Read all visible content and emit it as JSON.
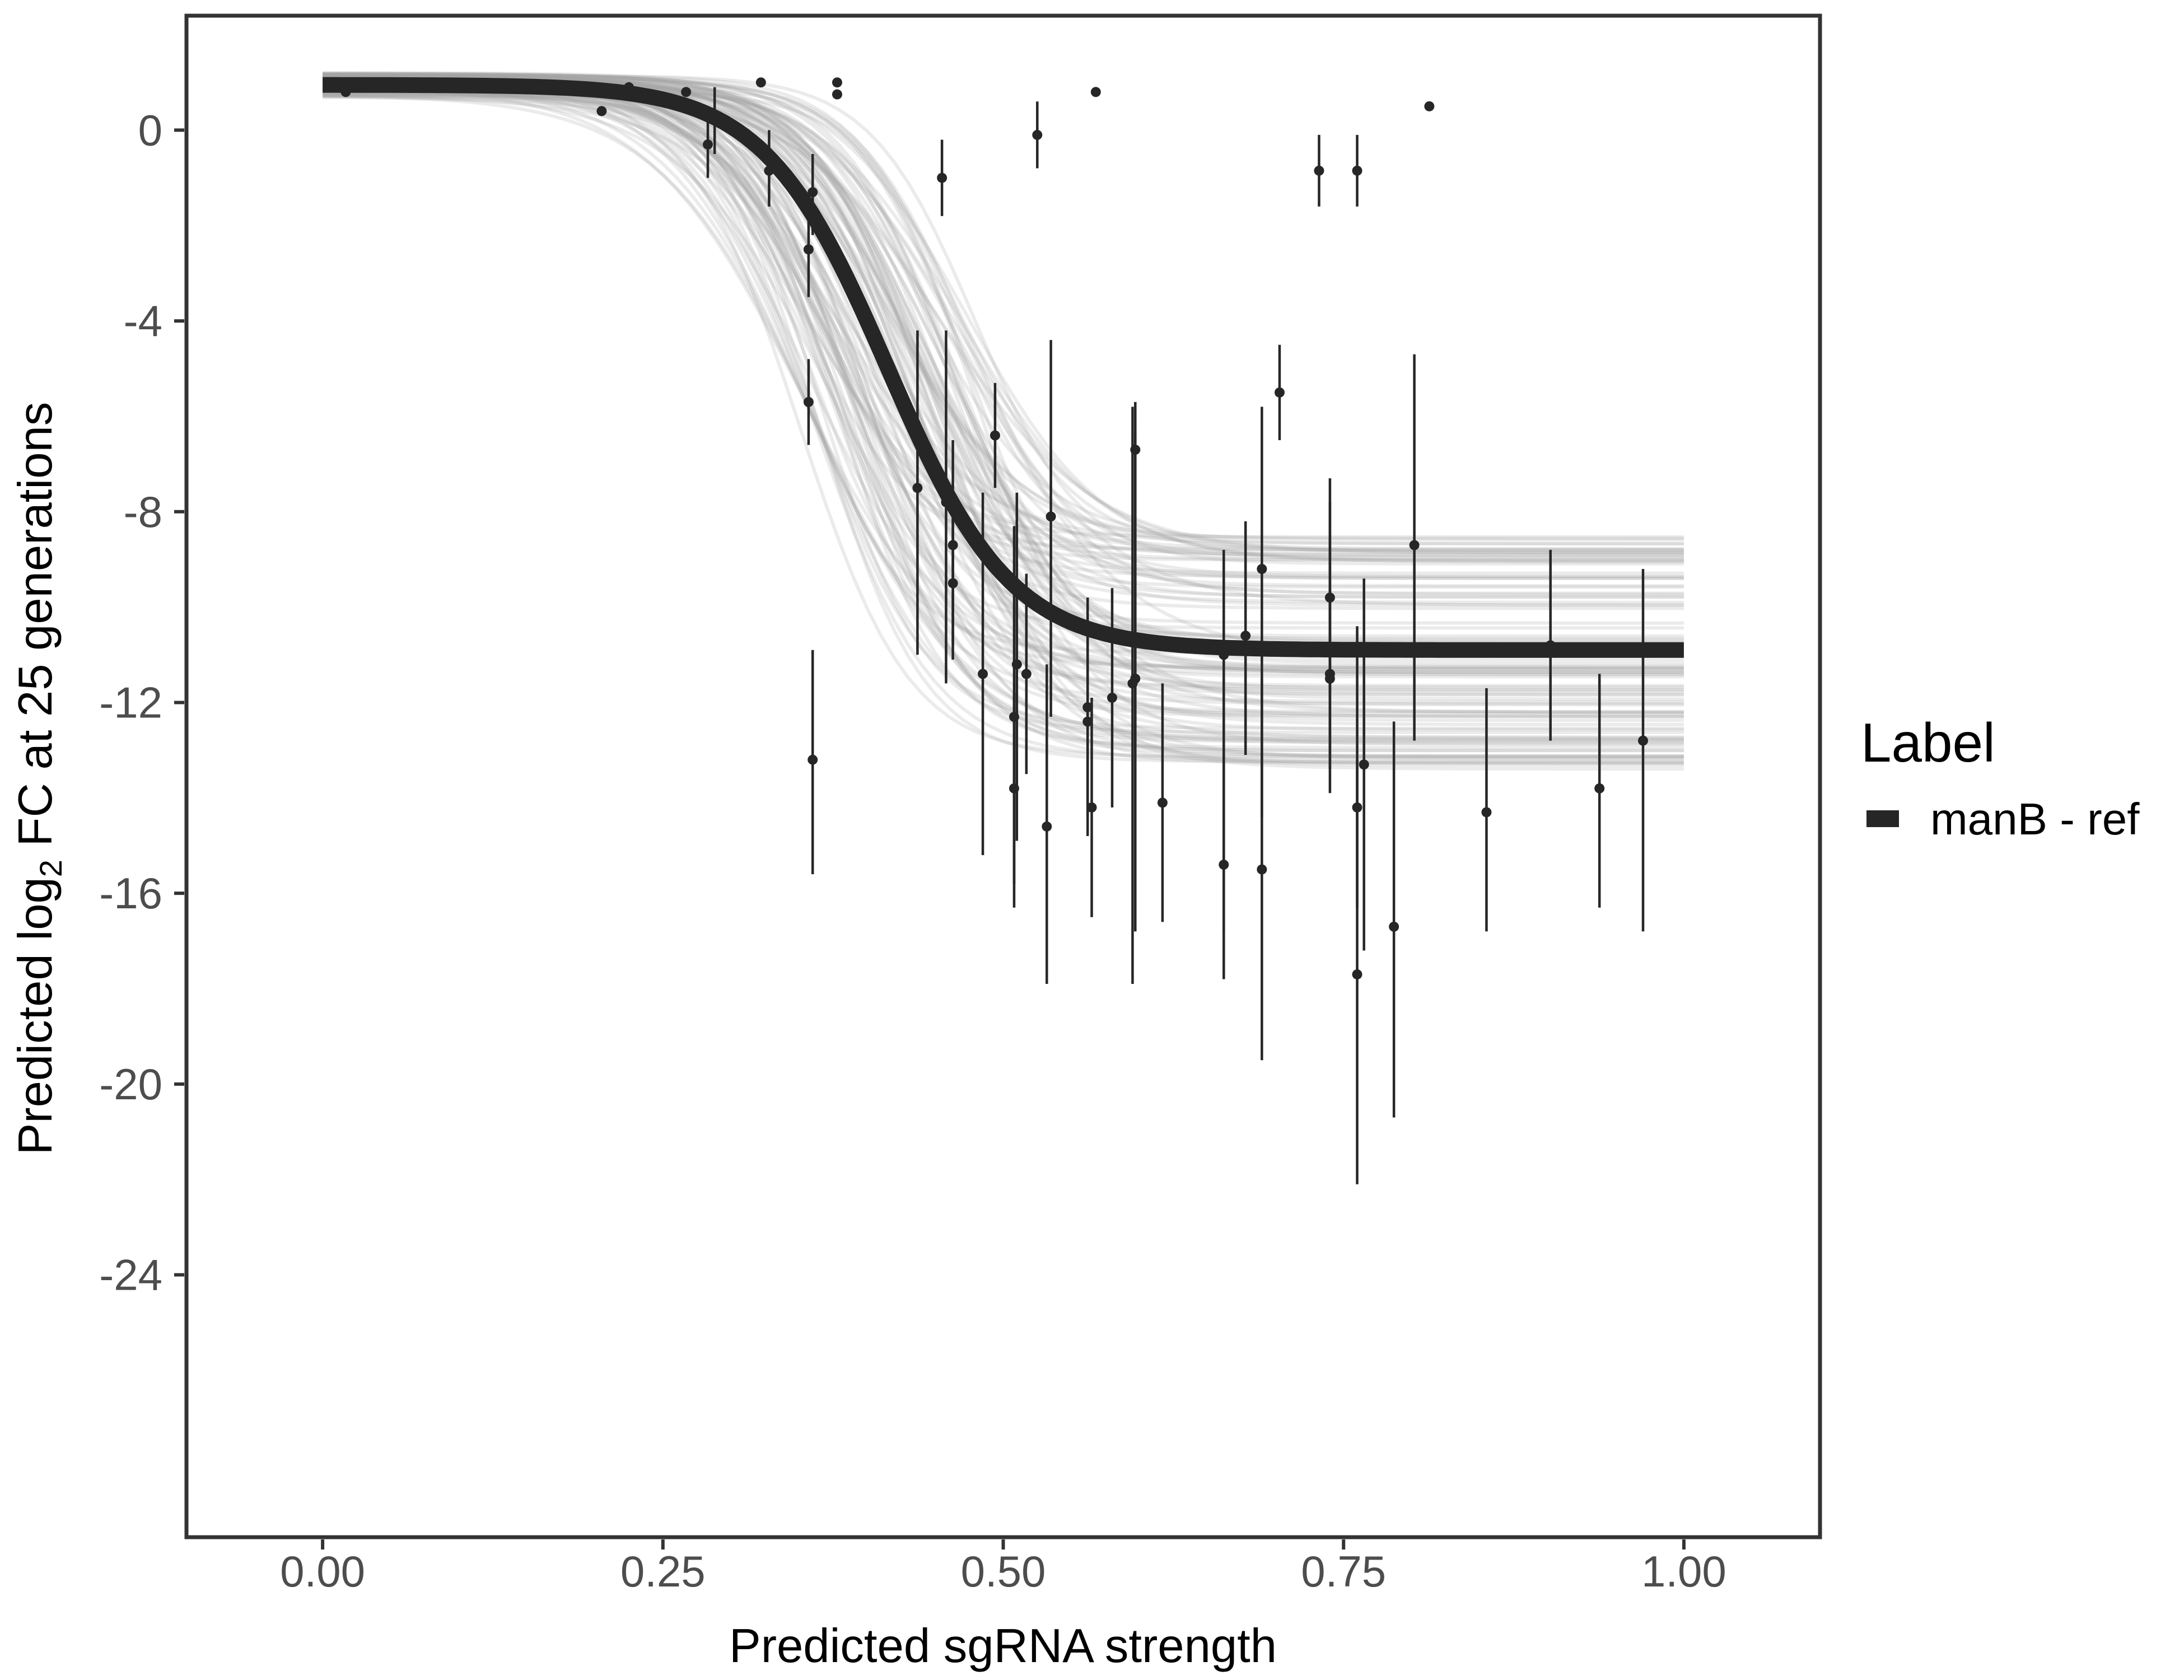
{
  "chart_data": {
    "type": "scatter",
    "xlabel": "Predicted sgRNA strength",
    "ylabel_prefix": "Predicted  log",
    "ylabel_subscript": "2",
    "ylabel_suffix": " FC at 25 generations",
    "xlim": [
      -0.1,
      1.1
    ],
    "ylim": [
      -29.5,
      2.4
    ],
    "x_ticks": [
      0.0,
      0.25,
      0.5,
      0.75,
      1.0
    ],
    "x_tick_labels": [
      "0.00",
      "0.25",
      "0.50",
      "0.75",
      "1.00"
    ],
    "y_ticks": [
      0,
      -4,
      -8,
      -12,
      -16,
      -20,
      -24
    ],
    "y_tick_labels": [
      "0",
      "-4",
      "-8",
      "-12",
      "-16",
      "-20",
      "-24"
    ],
    "grid": false,
    "legend": {
      "title": "Label",
      "placement": "right",
      "entries": [
        {
          "label": "manB - ref",
          "color": "#262626"
        }
      ]
    },
    "fit_curve": {
      "name": "manB - ref",
      "form": "logistic",
      "upper": 0.95,
      "lower": -10.9,
      "midpoint": 0.415,
      "slope": 22,
      "color": "#262626"
    },
    "posterior_band_color": "#a6a6a6",
    "points": [
      {
        "x": 0.017,
        "y": 0.8
      },
      {
        "x": 0.205,
        "y": 0.4
      },
      {
        "x": 0.225,
        "y": 0.9
      },
      {
        "x": 0.267,
        "y": 0.8
      },
      {
        "x": 0.283,
        "y": -0.3,
        "lo": -1.0,
        "hi": 0.4
      },
      {
        "x": 0.288,
        "y": 0.2,
        "lo": -0.5,
        "hi": 0.9
      },
      {
        "x": 0.322,
        "y": 1.0
      },
      {
        "x": 0.328,
        "y": -0.85,
        "lo": -1.6,
        "hi": 0.0
      },
      {
        "x": 0.357,
        "y": -2.5,
        "lo": -3.5,
        "hi": -1.5
      },
      {
        "x": 0.357,
        "y": -5.7,
        "lo": -6.6,
        "hi": -4.8
      },
      {
        "x": 0.36,
        "y": -1.3,
        "lo": -2.2,
        "hi": -0.5
      },
      {
        "x": 0.36,
        "y": -13.2,
        "lo": -15.6,
        "hi": -10.9
      },
      {
        "x": 0.378,
        "y": 0.75
      },
      {
        "x": 0.378,
        "y": 1.0
      },
      {
        "x": 0.437,
        "y": -7.5,
        "lo": -11.0,
        "hi": -4.2
      },
      {
        "x": 0.455,
        "y": -1.0,
        "lo": -1.8,
        "hi": -0.2
      },
      {
        "x": 0.458,
        "y": -7.8,
        "lo": -11.6,
        "hi": -4.2
      },
      {
        "x": 0.463,
        "y": -8.7,
        "lo": -10.8,
        "hi": -6.5
      },
      {
        "x": 0.463,
        "y": -9.5,
        "lo": -11.1,
        "hi": -7.9
      },
      {
        "x": 0.485,
        "y": -11.4,
        "lo": -15.2,
        "hi": -7.6
      },
      {
        "x": 0.494,
        "y": -6.4,
        "lo": -7.5,
        "hi": -5.3
      },
      {
        "x": 0.508,
        "y": -12.3,
        "lo": -16.3,
        "hi": -8.3
      },
      {
        "x": 0.508,
        "y": -13.8,
        "lo": -15.8,
        "hi": -11.8
      },
      {
        "x": 0.51,
        "y": -11.2,
        "lo": -14.9,
        "hi": -7.6
      },
      {
        "x": 0.517,
        "y": -11.4,
        "lo": -13.5,
        "hi": -9.3
      },
      {
        "x": 0.525,
        "y": -0.1,
        "lo": -0.8,
        "hi": 0.6
      },
      {
        "x": 0.532,
        "y": -14.6,
        "lo": -17.9,
        "hi": -11.2
      },
      {
        "x": 0.535,
        "y": -8.1,
        "lo": -12.3,
        "hi": -4.4
      },
      {
        "x": 0.562,
        "y": -12.1,
        "lo": -14.8,
        "hi": -9.8
      },
      {
        "x": 0.562,
        "y": -12.4,
        "lo": -14.4,
        "hi": -10.4
      },
      {
        "x": 0.565,
        "y": -14.2,
        "lo": -16.5,
        "hi": -11.9
      },
      {
        "x": 0.568,
        "y": 0.8
      },
      {
        "x": 0.58,
        "y": -11.9,
        "lo": -14.2,
        "hi": -9.6
      },
      {
        "x": 0.595,
        "y": -11.6,
        "lo": -17.9,
        "hi": -5.8
      },
      {
        "x": 0.597,
        "y": -6.7,
        "lo": -13.0,
        "hi": -5.7
      },
      {
        "x": 0.597,
        "y": -11.5,
        "lo": -16.8,
        "hi": -6.3
      },
      {
        "x": 0.617,
        "y": -14.1,
        "lo": -16.6,
        "hi": -11.6
      },
      {
        "x": 0.662,
        "y": -11.0,
        "lo": -16.8,
        "hi": -8.8
      },
      {
        "x": 0.662,
        "y": -15.4,
        "lo": -17.8,
        "hi": -13.1
      },
      {
        "x": 0.678,
        "y": -10.6,
        "lo": -13.1,
        "hi": -8.2
      },
      {
        "x": 0.69,
        "y": -9.2,
        "lo": -14.4,
        "hi": -5.8
      },
      {
        "x": 0.69,
        "y": -15.5,
        "lo": -19.5,
        "hi": -11.5
      },
      {
        "x": 0.703,
        "y": -5.5,
        "lo": -6.5,
        "hi": -4.5
      },
      {
        "x": 0.732,
        "y": -0.85,
        "lo": -1.6,
        "hi": -0.1
      },
      {
        "x": 0.74,
        "y": -11.4,
        "lo": -13.9,
        "hi": -7.3
      },
      {
        "x": 0.74,
        "y": -9.8,
        "lo": -11.8,
        "hi": -7.8
      },
      {
        "x": 0.74,
        "y": -11.5,
        "lo": -13.4,
        "hi": -9.6
      },
      {
        "x": 0.76,
        "y": -0.85,
        "lo": -1.6,
        "hi": -0.1
      },
      {
        "x": 0.76,
        "y": -14.2,
        "lo": -16.3,
        "hi": -10.4
      },
      {
        "x": 0.76,
        "y": -17.7,
        "lo": -22.1,
        "hi": -13.2
      },
      {
        "x": 0.765,
        "y": -13.3,
        "lo": -17.2,
        "hi": -9.4
      },
      {
        "x": 0.787,
        "y": -16.7,
        "lo": -20.7,
        "hi": -12.4
      },
      {
        "x": 0.802,
        "y": -8.7,
        "lo": -12.8,
        "hi": -4.7
      },
      {
        "x": 0.813,
        "y": 0.5
      },
      {
        "x": 0.855,
        "y": -14.3,
        "lo": -16.8,
        "hi": -11.7
      },
      {
        "x": 0.902,
        "y": -10.8,
        "lo": -12.8,
        "hi": -8.8
      },
      {
        "x": 0.938,
        "y": -13.8,
        "lo": -16.3,
        "hi": -11.4
      },
      {
        "x": 0.97,
        "y": -12.8,
        "lo": -16.8,
        "hi": -9.2
      }
    ]
  }
}
